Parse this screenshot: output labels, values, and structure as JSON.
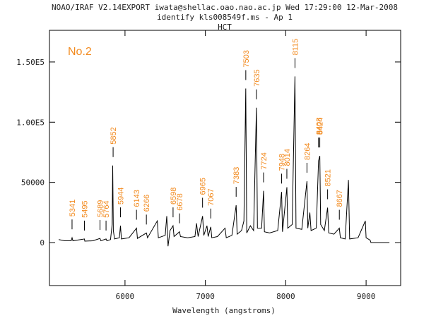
{
  "chart_data": {
    "type": "line",
    "title": "NOAO/IRAF V2.14EXPORT iwata@shellac.oao.nao.ac.jp Wed 17:29:00 12-Mar-2008",
    "subtitle": "identify kls008549f.ms - Ap 1",
    "subtitle2": "HCT",
    "xlabel": "Wavelength (angstroms)",
    "annotation": "No.2",
    "color": "#000000",
    "label_color": "#f28a1e",
    "xlim": [
      5060,
      9430
    ],
    "ylim": [
      -35700,
      176300
    ],
    "xticks": [
      6000,
      7000,
      8000,
      9000
    ],
    "yticks": [
      0,
      50000,
      {
        "value": 100000,
        "label": "1.00E5"
      },
      {
        "value": 150000,
        "label": "1.50E5"
      }
    ],
    "x": [
      5175,
      5250,
      5330,
      5341,
      5352,
      5495,
      5500,
      5600,
      5689,
      5700,
      5764,
      5775,
      5820,
      5840,
      5847,
      5855,
      5870,
      5930,
      5944,
      5955,
      6050,
      6143,
      6155,
      6266,
      6280,
      6402,
      6415,
      6500,
      6520,
      6535,
      6560,
      6598,
      6610,
      6678,
      6690,
      6780,
      6870,
      6890,
      6910,
      6965,
      6980,
      7020,
      7035,
      7067,
      7080,
      7150,
      7245,
      7260,
      7330,
      7383,
      7395,
      7450,
      7480,
      7503,
      7515,
      7560,
      7600,
      7635,
      7648,
      7700,
      7724,
      7735,
      7800,
      7900,
      7948,
      7960,
      8014,
      8025,
      8080,
      8115,
      8128,
      8200,
      8264,
      8275,
      8300,
      8315,
      8380,
      8408,
      8424,
      8435,
      8480,
      8521,
      8535,
      8600,
      8667,
      8680,
      8740,
      8780,
      8795,
      8900,
      8990,
      9000,
      9050,
      9060,
      9290
    ],
    "values": [
      2500,
      1500,
      1500,
      4000,
      1500,
      3000,
      1200,
      1500,
      3500,
      1500,
      3000,
      1500,
      2500,
      15000,
      64000,
      10000,
      3000,
      4000,
      14000,
      3000,
      4000,
      12000,
      3500,
      8000,
      4000,
      18000,
      4000,
      6000,
      22000,
      -3000,
      10000,
      14000,
      5000,
      9000,
      5000,
      4000,
      5000,
      16000,
      5000,
      22000,
      6000,
      14000,
      5000,
      13000,
      4000,
      5000,
      12000,
      4000,
      6000,
      31000,
      7000,
      10000,
      18000,
      128000,
      8000,
      14000,
      10000,
      112000,
      12000,
      12000,
      43000,
      9000,
      8000,
      10000,
      42000,
      9000,
      46000,
      12000,
      15000,
      138000,
      12000,
      11000,
      51000,
      12000,
      25000,
      10000,
      12000,
      68000,
      72000,
      15000,
      10000,
      29000,
      8000,
      7000,
      12000,
      4000,
      3000,
      52000,
      3000,
      4000,
      18000,
      4000,
      2000,
      0,
      0
    ],
    "line_ids": [
      5341,
      5495,
      5689,
      5764,
      5852,
      5944,
      6143,
      6266,
      6598,
      6678,
      6965,
      7067,
      7383,
      7503,
      7635,
      7724,
      7948,
      8014,
      8115,
      8264,
      8408,
      8424,
      8521,
      8667
    ]
  }
}
